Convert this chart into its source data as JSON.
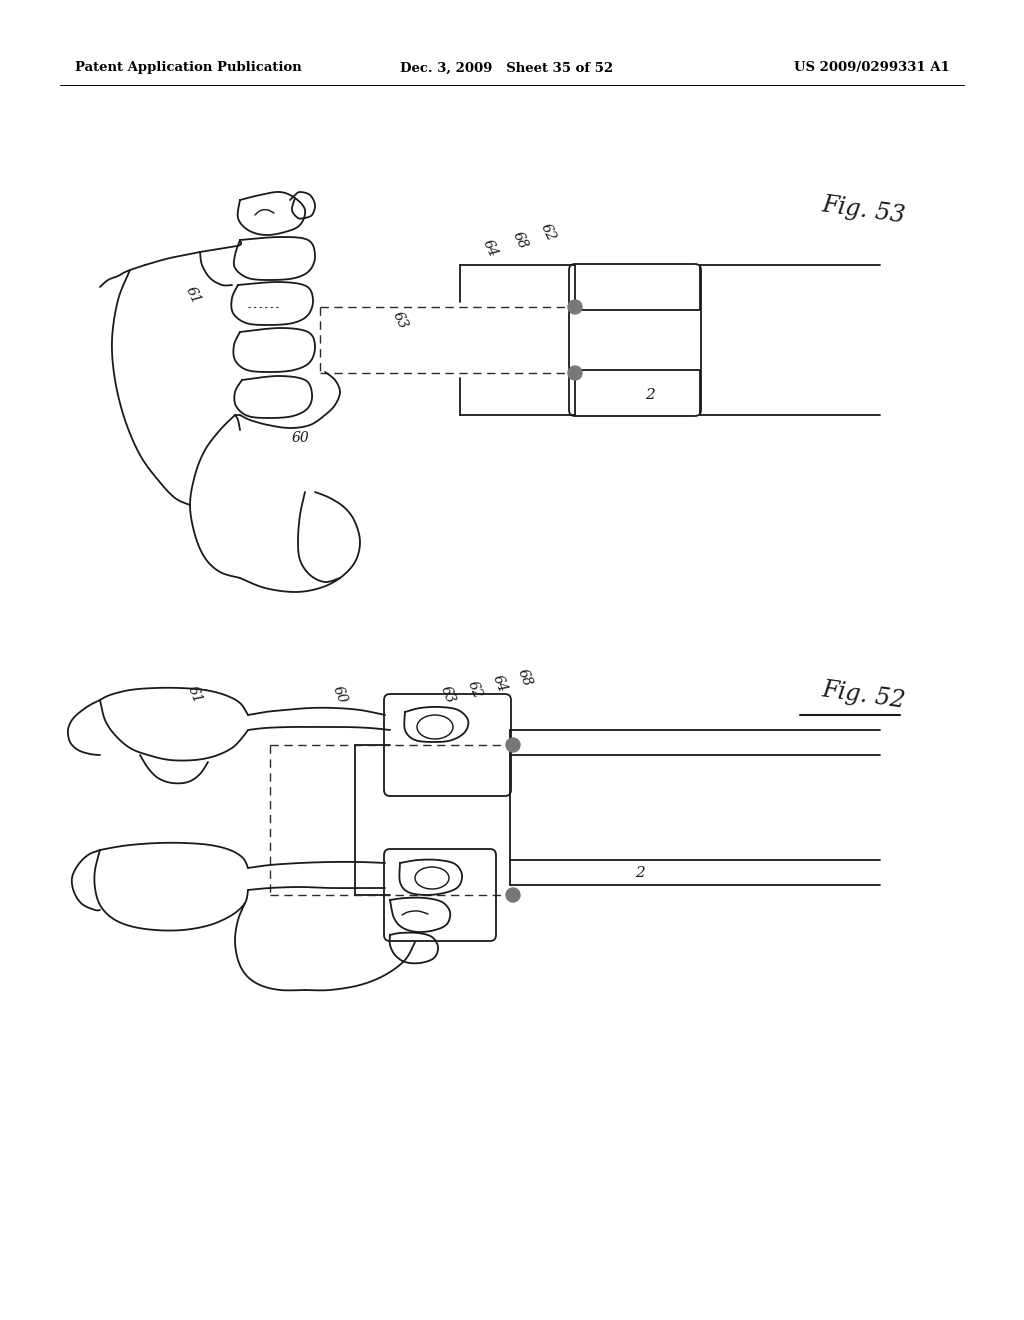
{
  "background_color": "#ffffff",
  "header_left": "Patent Application Publication",
  "header_center": "Dec. 3, 2009   Sheet 35 of 52",
  "header_right": "US 2009/0299331 A1",
  "fig53_label": "Fig. 53",
  "fig52_label": "Fig. 52",
  "line_color": "#1a1a1a",
  "line_width": 1.3,
  "dashed_color": "#2a2a2a",
  "dot_color": "#777777"
}
